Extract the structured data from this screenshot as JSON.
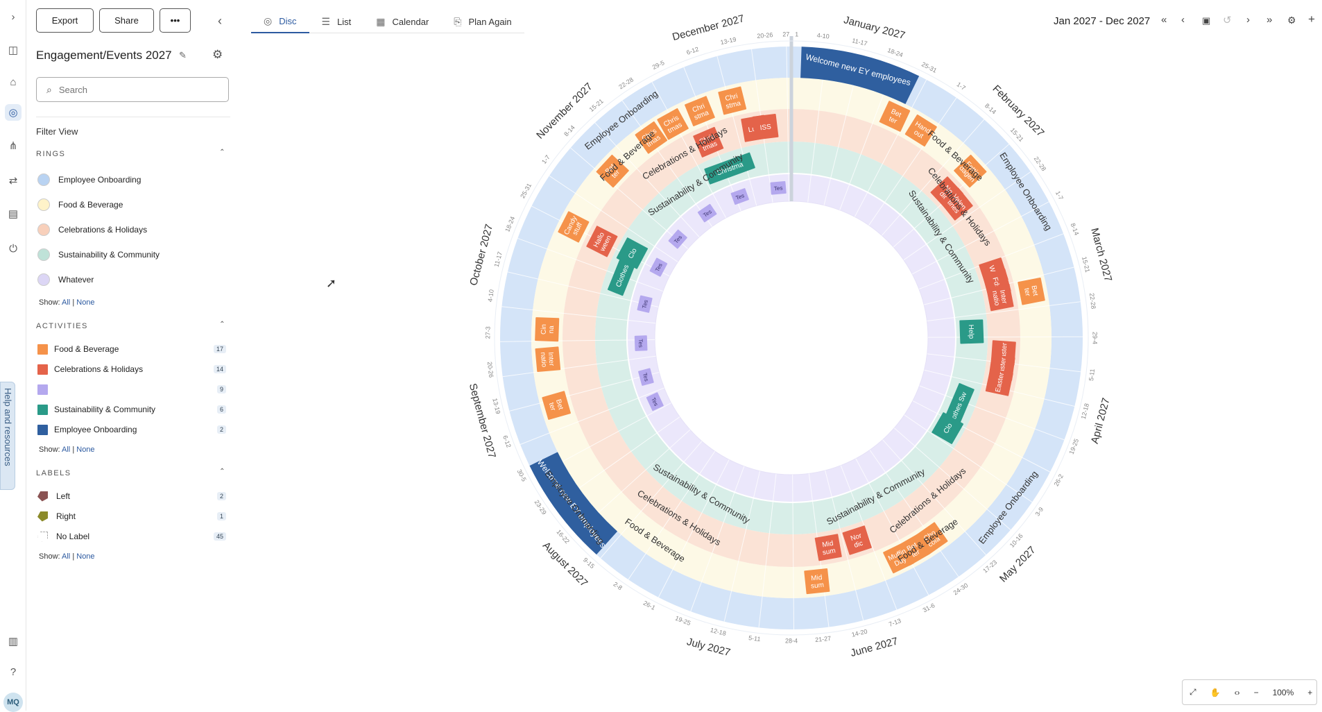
{
  "header": {
    "export": "Export",
    "share": "Share",
    "more": "•••",
    "title": "Engagement/Events 2027",
    "search_placeholder": "Search",
    "filter_view": "Filter View"
  },
  "tabs": [
    {
      "label": "Disc",
      "active": true
    },
    {
      "label": "List"
    },
    {
      "label": "Calendar"
    },
    {
      "label": "Plan Again"
    }
  ],
  "toolbar": {
    "date_range": "Jan 2027 - Dec 2027"
  },
  "rings_section": {
    "title": "RINGS",
    "items": [
      {
        "label": "Employee Onboarding",
        "color": "#b9d3f2"
      },
      {
        "label": "Food & Beverage",
        "color": "#fff3c9"
      },
      {
        "label": "Celebrations & Holidays",
        "color": "#f8d0bb"
      },
      {
        "label": "Sustainability & Community",
        "color": "#bfe2d8"
      },
      {
        "label": "Whatever",
        "color": "#dcd6f5"
      }
    ]
  },
  "activities_section": {
    "title": "ACTIVITIES",
    "items": [
      {
        "label": "Food & Beverage",
        "count": "17",
        "color": "#f5924a"
      },
      {
        "label": "Celebrations & Holidays",
        "count": "14",
        "color": "#e4634a"
      },
      {
        "label": "",
        "count": "9",
        "color": "#b4a8ee"
      },
      {
        "label": "Sustainability & Community",
        "count": "6",
        "color": "#2a9a88"
      },
      {
        "label": "Employee Onboarding",
        "count": "2",
        "color": "#2f5f9f"
      }
    ]
  },
  "labels_section": {
    "title": "LABELS",
    "items": [
      {
        "label": "Left",
        "count": "2",
        "color": "#8a5353"
      },
      {
        "label": "Right",
        "count": "1",
        "color": "#8b8a2a"
      },
      {
        "label": "No Label",
        "count": "45"
      }
    ]
  },
  "show": {
    "prefix": "Show:",
    "all": "All",
    "none": "None"
  },
  "sidebar_help": "Help and resources",
  "user_initials": "MQ",
  "zoom": {
    "level": "100%"
  },
  "disc": {
    "months": [
      "January 2027",
      "February 2027",
      "March 2027",
      "April 2027",
      "May 2027",
      "June 2027",
      "July 2027",
      "August 2027",
      "September 2027",
      "October 2027",
      "November 2027",
      "December 2027"
    ],
    "ring_labels": [
      {
        "text": "Employee Onboarding"
      },
      {
        "text": "Food & Beverage"
      },
      {
        "text": "Celebrations & Holidays"
      },
      {
        "text": "Sustainability & Community"
      }
    ],
    "week_labels": [
      {
        "text": "1",
        "angle": 1
      },
      {
        "text": "4-10",
        "angle": 6
      },
      {
        "text": "11-17",
        "angle": 13
      },
      {
        "text": "18-24",
        "angle": 20
      },
      {
        "text": "25-31",
        "angle": 27
      },
      {
        "text": "1-7",
        "angle": 34
      },
      {
        "text": "8-14",
        "angle": 41
      },
      {
        "text": "15-21",
        "angle": 48
      },
      {
        "text": "22-28",
        "angle": 55
      },
      {
        "text": "1-7",
        "angle": 62
      },
      {
        "text": "8-14",
        "angle": 69
      },
      {
        "text": "15-21",
        "angle": 76
      },
      {
        "text": "22-28",
        "angle": 83
      },
      {
        "text": "29-4",
        "angle": 90
      },
      {
        "text": "5-11",
        "angle": 97
      },
      {
        "text": "12-18",
        "angle": 104
      },
      {
        "text": "19-25",
        "angle": 111
      },
      {
        "text": "26-2",
        "angle": 118
      },
      {
        "text": "3-9",
        "angle": 125
      },
      {
        "text": "10-16",
        "angle": 132
      },
      {
        "text": "17-23",
        "angle": 139
      },
      {
        "text": "24-30",
        "angle": 146
      },
      {
        "text": "31-6",
        "angle": 153
      },
      {
        "text": "7-13",
        "angle": 160
      },
      {
        "text": "14-20",
        "angle": 167
      },
      {
        "text": "21-27",
        "angle": 174
      },
      {
        "text": "28-4",
        "angle": 180
      },
      {
        "text": "5-11",
        "angle": 187
      },
      {
        "text": "12-18",
        "angle": 194
      },
      {
        "text": "19-25",
        "angle": 201
      },
      {
        "text": "26-1",
        "angle": 208
      },
      {
        "text": "2-8",
        "angle": 215
      },
      {
        "text": "9-15",
        "angle": 222
      },
      {
        "text": "16-22",
        "angle": 229
      },
      {
        "text": "23-29",
        "angle": 236
      },
      {
        "text": "30-5",
        "angle": 243
      },
      {
        "text": "6-12",
        "angle": 250
      },
      {
        "text": "13-19",
        "angle": 257
      },
      {
        "text": "20-26",
        "angle": 264
      },
      {
        "text": "27-3",
        "angle": 271
      },
      {
        "text": "4-10",
        "angle": 278
      },
      {
        "text": "11-17",
        "angle": 285
      },
      {
        "text": "18-24",
        "angle": 292
      },
      {
        "text": "25-31",
        "angle": 299
      },
      {
        "text": "1-7",
        "angle": 306
      },
      {
        "text": "8-14",
        "angle": 313
      },
      {
        "text": "15-21",
        "angle": 320
      },
      {
        "text": "22-28",
        "angle": 327
      },
      {
        "text": "29-5",
        "angle": 334
      },
      {
        "text": "6-12",
        "angle": 341
      },
      {
        "text": "13-19",
        "angle": 348
      },
      {
        "text": "20-26",
        "angle": 355
      },
      {
        "text": "27",
        "angle": 359
      }
    ],
    "arcs": [
      {
        "text": "Welcome new EY employees",
        "ring": "onboarding",
        "start": 2,
        "end": 26
      },
      {
        "text": "Welcome new EY employees",
        "ring": "onboarding",
        "start": 222,
        "end": 244
      }
    ],
    "events": [
      {
        "text": "Bet ter",
        "kind": "food",
        "angle": 25,
        "ring": "food"
      },
      {
        "text": "Hand out",
        "kind": "food",
        "angle": 32,
        "ring": "food"
      },
      {
        "text": "Fettis dagen",
        "kind": "food",
        "angle": 47,
        "ring": "food"
      },
      {
        "text": "Nor dic",
        "kind": "celeb",
        "angle": 47,
        "ring": "celeb"
      },
      {
        "text": "Valen tines",
        "kind": "celeb",
        "angle": 51,
        "ring": "celeb"
      },
      {
        "text": "Wint",
        "kind": "celeb",
        "angle": 72,
        "ring": "celeb"
      },
      {
        "text": "Fds",
        "kind": "celeb",
        "angle": 75,
        "ring": "celeb"
      },
      {
        "text": "Inter natio",
        "kind": "celeb",
        "angle": 79,
        "ring": "celeb"
      },
      {
        "text": "Bet ter",
        "kind": "food",
        "angle": 79,
        "ring": "food"
      },
      {
        "text": "Help",
        "kind": "sust",
        "angle": 88,
        "ring": "sust"
      },
      {
        "text": "Easter",
        "kind": "celeb",
        "angle": 94,
        "ring": "celeb"
      },
      {
        "text": "Easter",
        "kind": "celeb",
        "angle": 98,
        "ring": "celeb"
      },
      {
        "text": "Easter",
        "kind": "celeb",
        "angle": 102,
        "ring": "celeb"
      },
      {
        "text": "Clothes Sw",
        "kind": "sust",
        "angle": 113,
        "ring": "sust"
      },
      {
        "text": "Clo",
        "kind": "sust",
        "angle": 120,
        "ring": "sust"
      },
      {
        "text": "Cho cola",
        "kind": "food",
        "angle": 145,
        "ring": "food"
      },
      {
        "text": "Bet ter",
        "kind": "food",
        "angle": 150,
        "ring": "food"
      },
      {
        "text": "Muffin Day",
        "kind": "food",
        "angle": 154,
        "ring": "food"
      },
      {
        "text": "Nor dic",
        "kind": "celeb",
        "angle": 162,
        "ring": "celeb"
      },
      {
        "text": "Mid sum",
        "kind": "celeb",
        "angle": 170,
        "ring": "celeb"
      },
      {
        "text": "Mid sum",
        "kind": "food",
        "angle": 174,
        "ring": "food"
      },
      {
        "text": "Bet ter",
        "kind": "food",
        "angle": 254,
        "ring": "food"
      },
      {
        "text": "Inter natio",
        "kind": "food",
        "angle": 265,
        "ring": "food"
      },
      {
        "text": "Cin na",
        "kind": "food",
        "angle": 272,
        "ring": "food"
      },
      {
        "text": "Clothes Sw",
        "kind": "sust",
        "angle": 292,
        "ring": "sust"
      },
      {
        "text": "Clo",
        "kind": "sust",
        "angle": 298,
        "ring": "sust"
      },
      {
        "text": "Hallo ween",
        "kind": "celeb",
        "angle": 297,
        "ring": "celeb"
      },
      {
        "text": "Candy stuff",
        "kind": "food",
        "angle": 297,
        "ring": "food"
      },
      {
        "text": "Bet ter",
        "kind": "food",
        "angle": 313,
        "ring": "food"
      },
      {
        "text": "Christma",
        "kind": "sust",
        "angle": 340,
        "ring": "sust"
      },
      {
        "text": "Chris tmas",
        "kind": "celeb",
        "angle": 337,
        "ring": "celeb"
      },
      {
        "text": "Luci",
        "kind": "celeb",
        "angle": 350,
        "ring": "celeb"
      },
      {
        "text": "ISS",
        "kind": "celeb",
        "angle": 353,
        "ring": "celeb"
      },
      {
        "text": "Chris tmas",
        "kind": "food",
        "angle": 325,
        "ring": "food"
      },
      {
        "text": "Chris tmas",
        "kind": "food",
        "angle": 331,
        "ring": "food"
      },
      {
        "text": "Chri stma",
        "kind": "food",
        "angle": 338,
        "ring": "food"
      },
      {
        "text": "Chri stma",
        "kind": "food",
        "angle": 346,
        "ring": "food"
      },
      {
        "text": "Tes",
        "kind": "what",
        "angle": 245,
        "ring": "what"
      },
      {
        "text": "Tes",
        "kind": "what",
        "angle": 255,
        "ring": "what"
      },
      {
        "text": "Tes",
        "kind": "what",
        "angle": 268,
        "ring": "what"
      },
      {
        "text": "Tes",
        "kind": "what",
        "angle": 283,
        "ring": "what"
      },
      {
        "text": "Tes",
        "kind": "what",
        "angle": 298,
        "ring": "what"
      },
      {
        "text": "Tes",
        "kind": "what",
        "angle": 311,
        "ring": "what"
      },
      {
        "text": "Tes",
        "kind": "what",
        "angle": 326,
        "ring": "what"
      },
      {
        "text": "Tes",
        "kind": "what",
        "angle": 340,
        "ring": "what"
      },
      {
        "text": "Tes",
        "kind": "what",
        "angle": 355,
        "ring": "what"
      }
    ]
  }
}
